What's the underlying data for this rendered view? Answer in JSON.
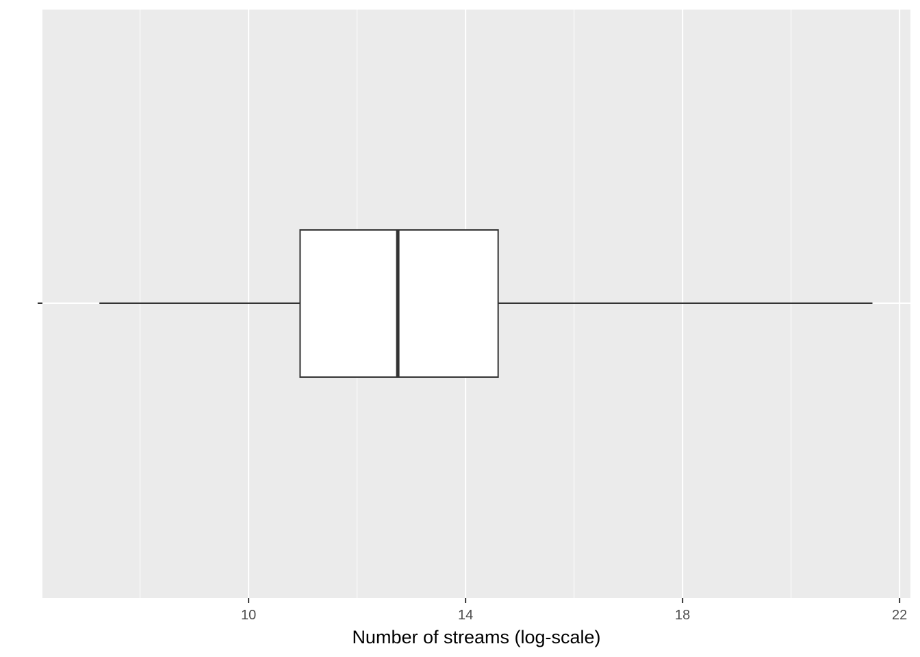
{
  "chart_data": {
    "type": "boxplot",
    "title": "",
    "xlabel": "Number of streams (log-scale)",
    "ylabel": "",
    "xlim": [
      6.2,
      22.2
    ],
    "x_ticks": [
      10,
      14,
      18,
      22
    ],
    "x_minor_ticks": [
      8,
      12,
      16,
      20
    ],
    "grid": true,
    "orientation": "horizontal",
    "box": {
      "whisker_low": 7.25,
      "q1": 10.95,
      "median": 12.75,
      "q3": 14.6,
      "whisker_high": 21.5
    },
    "colors": {
      "panel": "#ebebeb",
      "grid": "#ffffff",
      "box_fill": "#ffffff",
      "box_line": "#333333"
    }
  }
}
